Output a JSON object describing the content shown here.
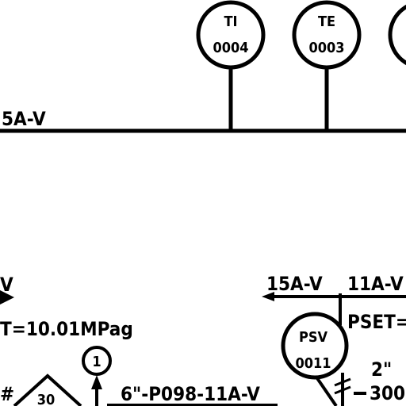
{
  "instruments": {
    "ti_0004": {
      "tag": "TI",
      "number": "0004"
    },
    "te_0003": {
      "tag": "TE",
      "number": "0003"
    },
    "psv_0011": {
      "tag": "PSV",
      "number": "0011"
    },
    "node_1": {
      "label": "1"
    }
  },
  "line_labels": {
    "top_line": "5A-V",
    "left_mid": "V",
    "right_a": "15A-V",
    "right_b": "11A-V",
    "bottom": "6\"-P098-11A-V"
  },
  "set_points": {
    "left": "T=10.01MPag",
    "right": "PSET="
  },
  "other_text": {
    "hash": "#",
    "triangle_value": "30",
    "size_2in": "2\"",
    "value_300": "300"
  }
}
